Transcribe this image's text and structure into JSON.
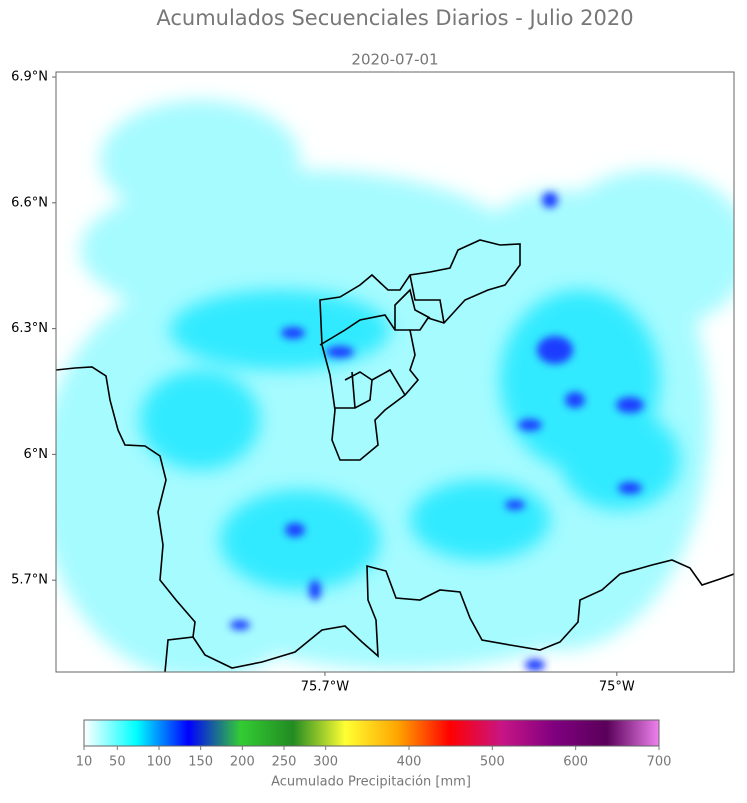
{
  "chart_data": {
    "type": "map",
    "title": "Acumulados Secuenciales Diarios - Julio 2020",
    "subtitle": "2020-07-01",
    "xlim": [
      -76.345,
      -74.719
    ],
    "ylim": [
      5.481,
      6.912
    ],
    "xticks": [
      {
        "value": -75.7,
        "label": "75.7°W"
      },
      {
        "value": -75,
        "label": "75°W"
      }
    ],
    "yticks": [
      {
        "value": 6.9,
        "label": "6.9°N"
      },
      {
        "value": 6.6,
        "label": "6.6°N"
      },
      {
        "value": 6.3,
        "label": "6.3°N"
      },
      {
        "value": 6,
        "label": "6°N"
      },
      {
        "value": 5.7,
        "label": "5.7°N"
      }
    ],
    "colorbar": {
      "label": "Acumulado Precipitación [mm]",
      "lim": [
        10,
        700
      ],
      "ticks": [
        10,
        50,
        100,
        150,
        200,
        250,
        300,
        400,
        500,
        600,
        700
      ],
      "colors": [
        "#ffffff",
        "#00ffff",
        "#0000ff",
        "#33cc33",
        "#228b22",
        "#ffff33",
        "#ffa500",
        "#ff0000",
        "#c71585",
        "#800080",
        "#5a005a",
        "#ee82ee"
      ]
    }
  }
}
